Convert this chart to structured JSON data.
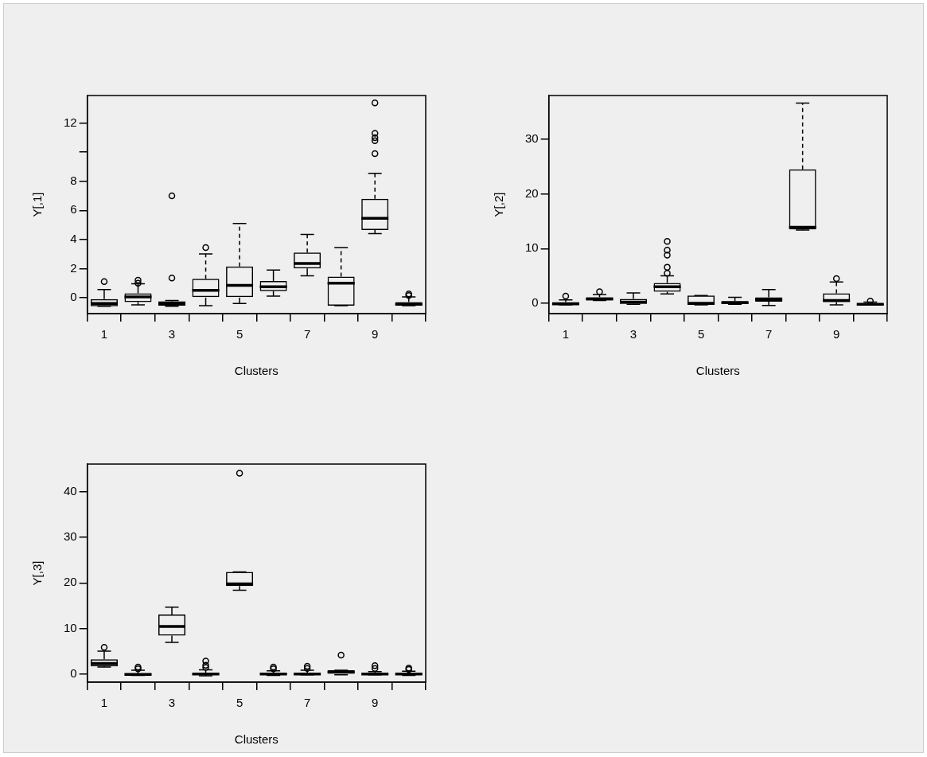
{
  "chart_data": [
    {
      "type": "box",
      "xlabel": "Clusters",
      "ylabel": "Y[,1]",
      "categories": [
        "1",
        null,
        "3",
        null,
        "5",
        null,
        "7",
        null,
        "9",
        null
      ],
      "ylim": [
        -1.1,
        13.9
      ],
      "yticks": [
        0,
        2,
        4,
        6,
        8,
        {
          "value": 10,
          "label": null
        },
        12
      ],
      "grid": false,
      "marker": "circle",
      "boxes": [
        {
          "low": -0.6,
          "q1": -0.6,
          "median": -0.4,
          "q3": -0.1,
          "high": 0.55,
          "outliers": [
            1.1
          ]
        },
        {
          "low": -0.5,
          "q1": -0.3,
          "median": 0.05,
          "q3": 0.3,
          "high": 0.95,
          "outliers": [
            1.0,
            1.2
          ]
        },
        {
          "low": -0.6,
          "q1": -0.55,
          "median": -0.4,
          "q3": -0.25,
          "high": -0.2,
          "outliers": [
            1.35,
            7.0
          ]
        },
        {
          "low": -0.55,
          "q1": 0,
          "median": 0.5,
          "q3": 1.3,
          "high": 3.0,
          "outliers": [
            3.45
          ]
        },
        {
          "low": -0.4,
          "q1": 0,
          "median": 0.85,
          "q3": 2.15,
          "high": 5.1
        },
        {
          "low": 0.1,
          "q1": 0.45,
          "median": 0.75,
          "q3": 1.15,
          "high": 1.9
        },
        {
          "low": 1.5,
          "q1": 2.0,
          "median": 2.35,
          "q3": 3.1,
          "high": 4.35
        },
        {
          "low": -0.55,
          "q1": -0.55,
          "median": 1.0,
          "q3": 1.45,
          "high": 3.45
        },
        {
          "low": 4.4,
          "q1": 4.65,
          "median": 5.45,
          "q3": 6.8,
          "high": 8.55,
          "outliers": [
            9.9,
            10.8,
            11.0,
            11.3,
            13.4
          ]
        },
        {
          "low": -0.55,
          "q1": -0.55,
          "median": -0.45,
          "q3": -0.3,
          "high": 0.05,
          "outliers": [
            0.15,
            0.25
          ]
        }
      ]
    },
    {
      "type": "box",
      "xlabel": "Clusters",
      "ylabel": "Y[,2]",
      "categories": [
        "1",
        null,
        "3",
        null,
        "5",
        null,
        "7",
        null,
        "9",
        null
      ],
      "ylim": [
        -1.9,
        38
      ],
      "yticks": [
        0,
        10,
        20,
        30
      ],
      "grid": false,
      "marker": "circle",
      "boxes": [
        {
          "low": -0.3,
          "q1": -0.3,
          "median": -0.1,
          "q3": 0.2,
          "high": 0.6,
          "outliers": [
            1.3
          ]
        },
        {
          "low": 0.5,
          "q1": 0.5,
          "median": 0.8,
          "q3": 1.1,
          "high": 1.6,
          "outliers": [
            2.1
          ]
        },
        {
          "low": -0.2,
          "q1": -0.1,
          "median": 0.2,
          "q3": 0.8,
          "high": 1.9
        },
        {
          "low": 1.7,
          "q1": 2.1,
          "median": 3.0,
          "q3": 3.7,
          "high": 5.0,
          "outliers": [
            5.5,
            6.6,
            8.8,
            9.7,
            11.3
          ]
        },
        {
          "low": -0.3,
          "q1": -0.3,
          "median": 0,
          "q3": 1.4,
          "high": 1.4
        },
        {
          "low": -0.2,
          "q1": -0.1,
          "median": 0.1,
          "q3": 0.4,
          "high": 1.1
        },
        {
          "low": -0.4,
          "q1": 0.3,
          "median": 0.7,
          "q3": 1.1,
          "high": 2.5
        },
        {
          "low": 13.4,
          "q1": 13.5,
          "median": 13.9,
          "q3": 24.5,
          "high": 36.6
        },
        {
          "low": -0.3,
          "q1": 0.2,
          "median": 0.5,
          "q3": 1.8,
          "high": 3.9,
          "outliers": [
            4.5
          ]
        },
        {
          "low": -0.3,
          "q1": -0.3,
          "median": -0.2,
          "q3": 0,
          "high": 0.2,
          "outliers": [
            0.4
          ]
        }
      ]
    },
    {
      "type": "box",
      "xlabel": "Clusters",
      "ylabel": "Y[,3]",
      "categories": [
        "1",
        null,
        "3",
        null,
        "5",
        null,
        "7",
        null,
        "9",
        null
      ],
      "ylim": [
        -1.7,
        46
      ],
      "yticks": [
        0,
        10,
        20,
        30,
        40
      ],
      "grid": false,
      "marker": "circle",
      "boxes": [
        {
          "low": 1.6,
          "q1": 1.8,
          "median": 2.4,
          "q3": 3.3,
          "high": 5.1,
          "outliers": [
            5.9
          ]
        },
        {
          "low": -0.2,
          "q1": -0.1,
          "median": 0,
          "q3": 0.2,
          "high": 0.9,
          "outliers": [
            1.2,
            1.6
          ]
        },
        {
          "low": 7.0,
          "q1": 8.5,
          "median": 10.5,
          "q3": 13.1,
          "high": 14.7
        },
        {
          "low": -0.3,
          "q1": -0.1,
          "median": 0.1,
          "q3": 0.3,
          "high": 1.0,
          "outliers": [
            1.5,
            2.0,
            2.9
          ]
        },
        {
          "low": 18.4,
          "q1": 19.3,
          "median": 19.8,
          "q3": 22.4,
          "high": 22.4,
          "outliers": [
            44.0
          ]
        },
        {
          "low": -0.2,
          "q1": -0.1,
          "median": 0.1,
          "q3": 0.3,
          "high": 0.8,
          "outliers": [
            1.2,
            1.6
          ]
        },
        {
          "low": -0.1,
          "q1": 0,
          "median": 0.1,
          "q3": 0.4,
          "high": 0.9,
          "outliers": [
            1.3,
            1.8
          ]
        },
        {
          "low": -0.1,
          "q1": 0,
          "median": 0.5,
          "q3": 0.9,
          "high": 0.9,
          "outliers": [
            4.2
          ]
        },
        {
          "low": -0.1,
          "q1": 0,
          "median": 0.1,
          "q3": 0.2,
          "high": 0.6,
          "outliers": [
            1.3,
            1.9
          ]
        },
        {
          "low": -0.2,
          "q1": -0.1,
          "median": 0.1,
          "q3": 0.3,
          "high": 0.7,
          "outliers": [
            1.1,
            1.4
          ]
        }
      ]
    }
  ]
}
